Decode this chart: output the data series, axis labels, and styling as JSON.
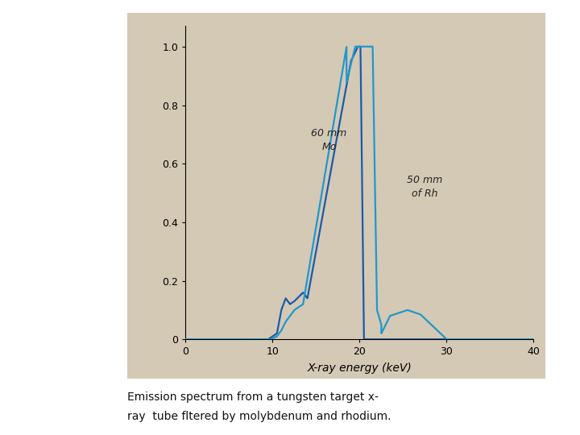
{
  "outer_bg": "#d4c9b5",
  "fig_bg": "#ffffff",
  "plot_bg": "#d4c9b5",
  "xlim": [
    0,
    40
  ],
  "ylim": [
    0,
    1.07
  ],
  "xticks": [
    0,
    10,
    20,
    30,
    40
  ],
  "yticks": [
    0,
    0.2,
    0.4,
    0.6,
    0.8,
    1.0
  ],
  "xlabel": "X-ray energy (keV)",
  "xlabel_fontsize": 10,
  "tick_fontsize": 9,
  "mo_color": "#1a5aaa",
  "rh_color": "#2098cc",
  "annotation_mo": "60 mm\nMo",
  "annotation_rh": "50 mm\nof Rh",
  "caption_line1": "Emission spectrum from a tungsten target x-",
  "caption_line2": "ray  tube fltered by molybdenum and rhodium.",
  "caption_fontsize": 10
}
